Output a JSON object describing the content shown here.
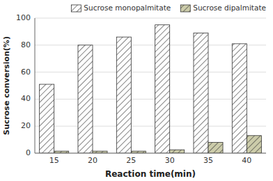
{
  "chart_data": {
    "type": "bar",
    "categories": [
      "15",
      "20",
      "25",
      "30",
      "35",
      "40"
    ],
    "series": [
      {
        "name": "Sucrose monopalmitate",
        "color": "#ffffff",
        "values": [
          51,
          80,
          86,
          95,
          89,
          81
        ]
      },
      {
        "name": "Sucrose dipalmitate",
        "color": "#ccccaa",
        "values": [
          1.5,
          1.5,
          1.5,
          2.5,
          8,
          13
        ]
      }
    ],
    "xlabel": "Reaction time(min)",
    "ylabel": "Sucrose conversion(%)",
    "ylim": [
      0,
      100
    ],
    "yticks": [
      0,
      20,
      40,
      60,
      80,
      100
    ],
    "grid": true,
    "legend": "upper right"
  }
}
